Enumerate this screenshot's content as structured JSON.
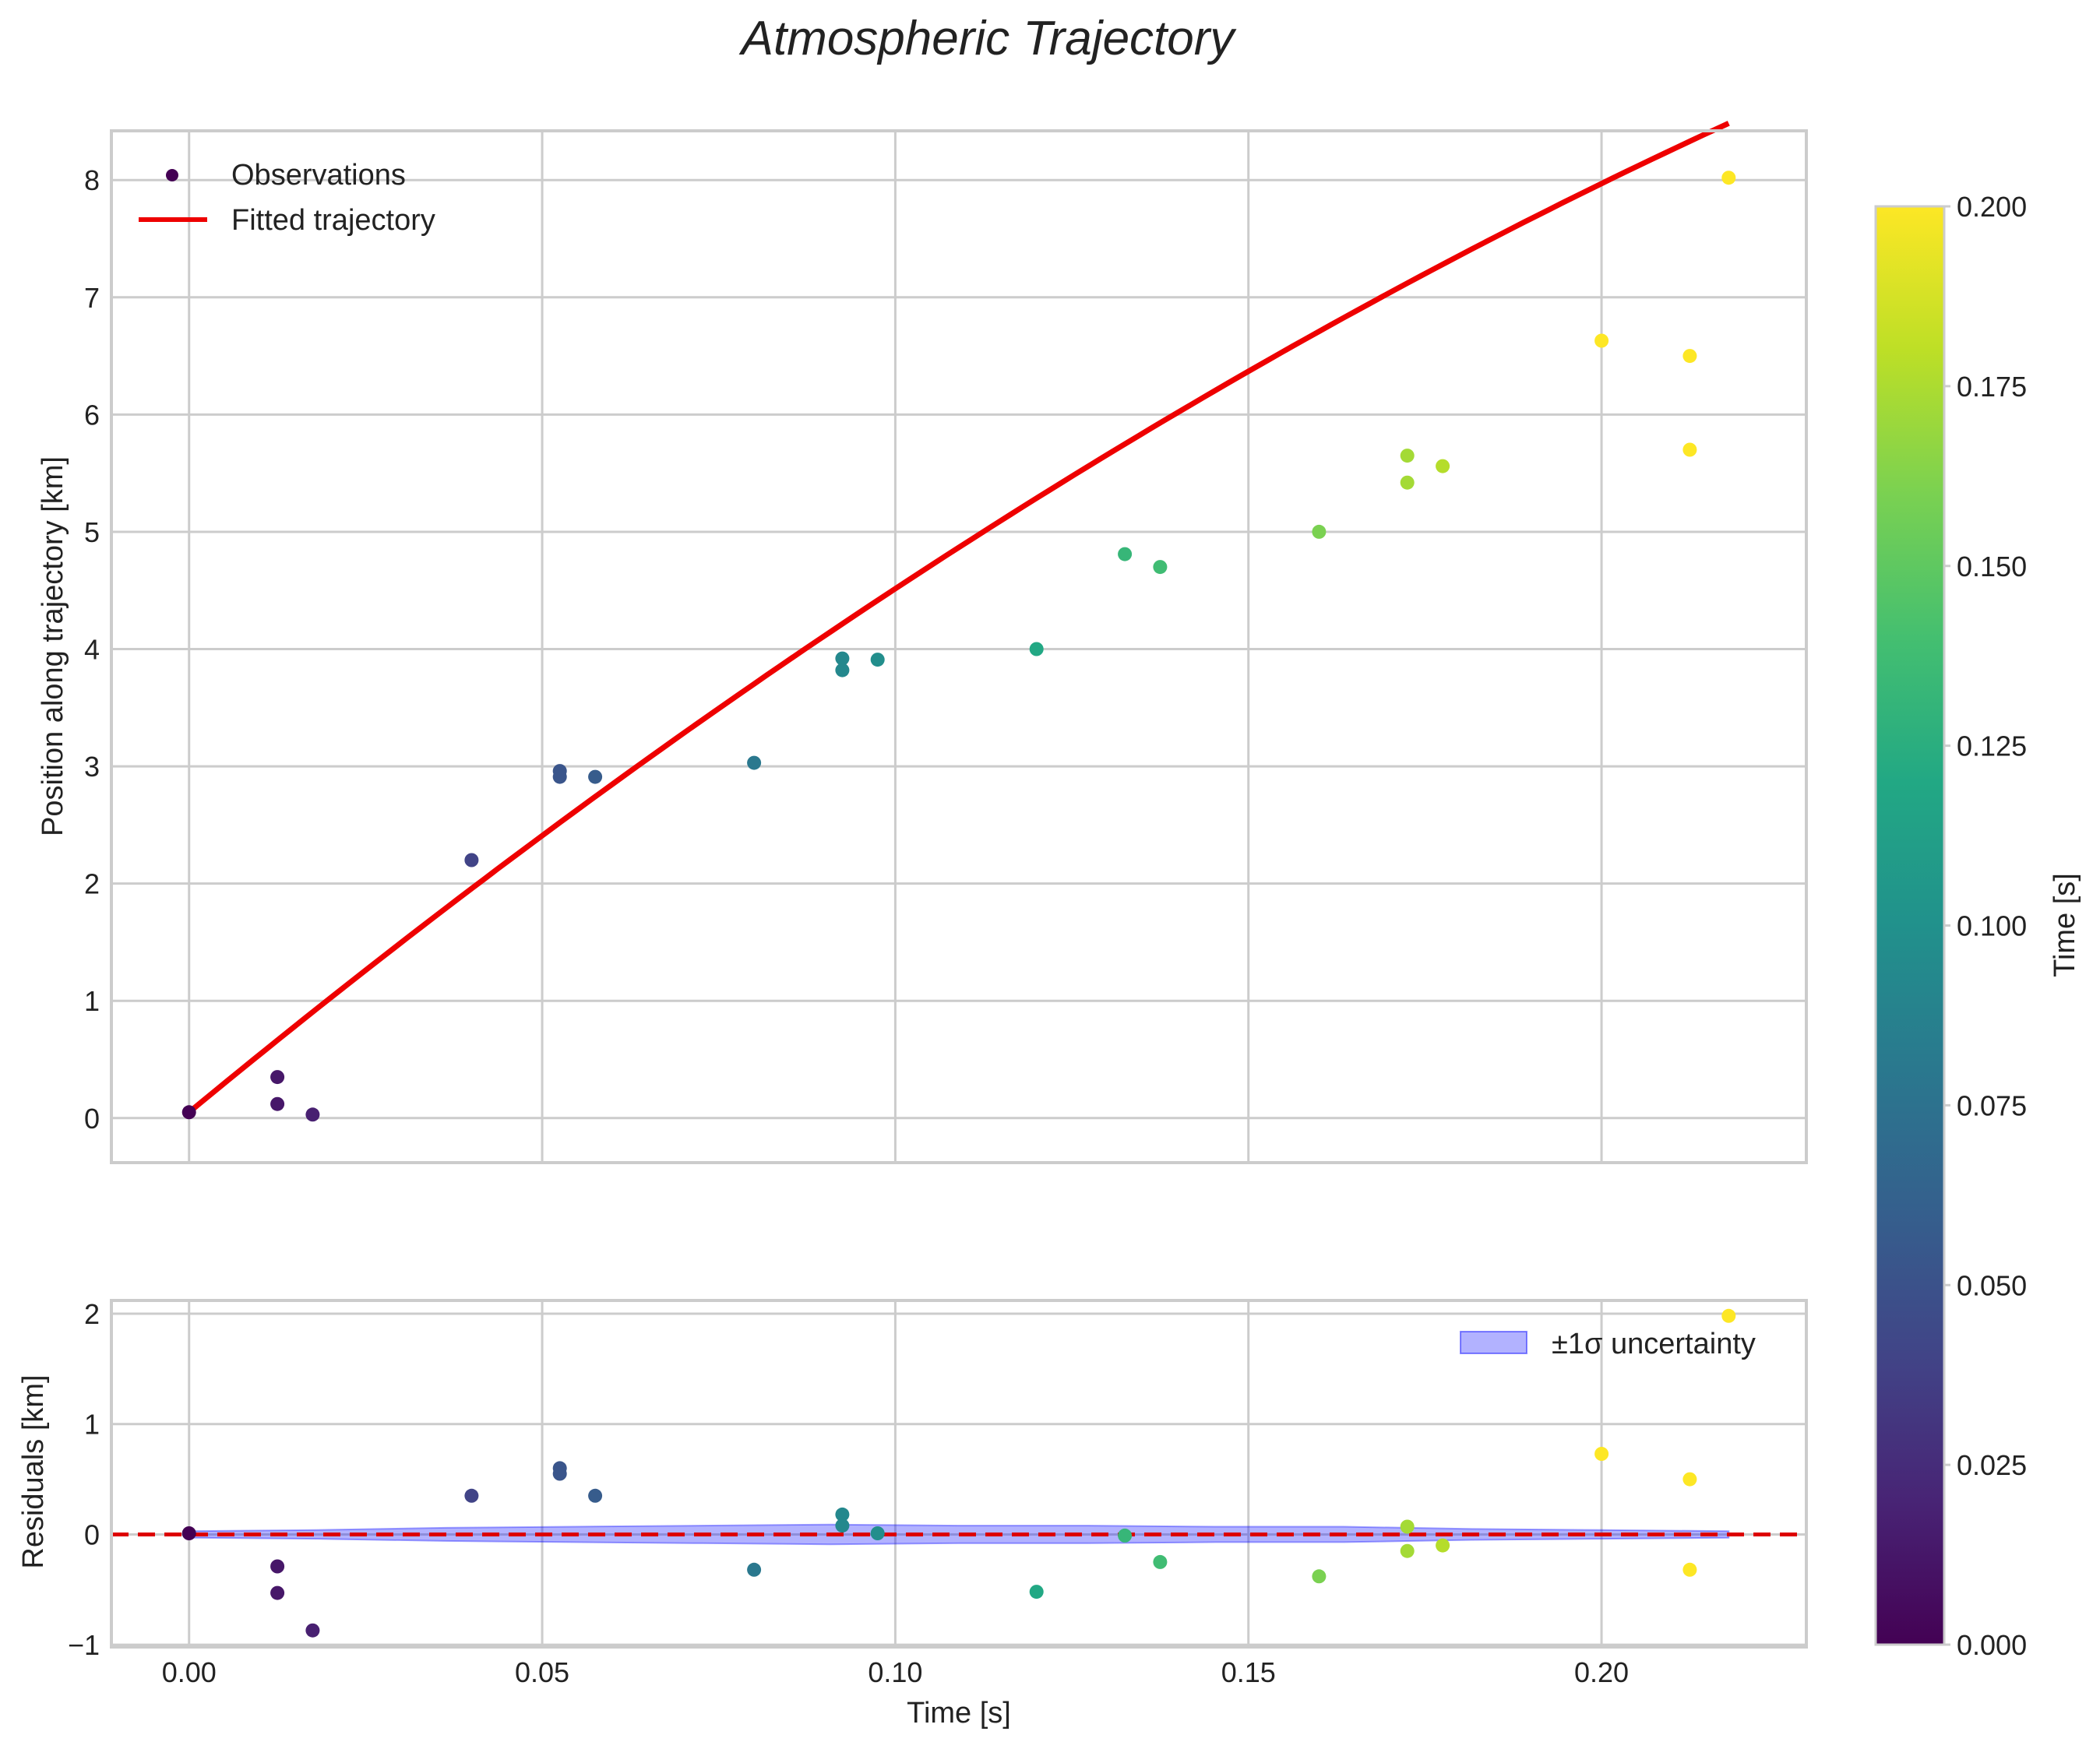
{
  "chart_data": {
    "type": "scatter",
    "title": "Atmospheric Trajectory",
    "x": [
      0.0,
      0.0125,
      0.0125,
      0.0175,
      0.04,
      0.0525,
      0.0525,
      0.0575,
      0.08,
      0.0925,
      0.0925,
      0.0975,
      0.12,
      0.1325,
      0.1375,
      0.16,
      0.1725,
      0.1725,
      0.1775,
      0.2,
      0.2125,
      0.2125,
      0.218
    ],
    "panels": [
      {
        "ylabel": "Position along trajectory [km]",
        "ylim": [
          -0.38,
          8.42
        ],
        "yticks": [
          0,
          1,
          2,
          3,
          4,
          5,
          6,
          7,
          8
        ],
        "ytick_labels": [
          "0",
          "1",
          "2",
          "3",
          "4",
          "5",
          "6",
          "7",
          "8"
        ],
        "series": [
          {
            "name": "Observations",
            "kind": "scatter",
            "values": [
              0.05,
              0.35,
              0.12,
              0.03,
              2.2,
              2.96,
              2.91,
              2.91,
              3.03,
              3.92,
              3.82,
              3.91,
              4.0,
              4.81,
              4.7,
              5.0,
              5.65,
              5.42,
              5.56,
              6.63,
              6.5,
              5.7,
              8.02
            ]
          },
          {
            "name": "Fitted trajectory",
            "kind": "line",
            "color": "#ee0000",
            "curve": {
              "v0_km_per_s": 49.7,
              "decel_km_per_s2": 101.0,
              "offset_km": 0.05,
              "x_start": 0.0,
              "x_end": 0.218
            }
          }
        ],
        "legend": "upper-left"
      },
      {
        "ylabel": "Residuals [km]",
        "ylim": [
          -1.02,
          2.12
        ],
        "yticks": [
          -1,
          0,
          1,
          2
        ],
        "ytick_labels": [
          "−1",
          "0",
          "1",
          "2"
        ],
        "xlabel": "Time [s]",
        "series": [
          {
            "name": "Residuals",
            "kind": "scatter",
            "values": [
              0.01,
              -0.29,
              -0.53,
              -0.87,
              0.35,
              0.6,
              0.55,
              0.35,
              -0.32,
              0.18,
              0.08,
              0.01,
              -0.52,
              -0.01,
              -0.25,
              -0.38,
              0.07,
              -0.15,
              -0.1,
              0.73,
              0.5,
              -0.32,
              1.98
            ]
          },
          {
            "name": "±1σ uncertainty",
            "kind": "band",
            "color": "#0000ff",
            "half_width": [
              0.03,
              0.04,
              0.06,
              0.07,
              0.08,
              0.09,
              0.08,
              0.08,
              0.07,
              0.07,
              0.05,
              0.04,
              0.03
            ]
          },
          {
            "name": "zero line",
            "kind": "hline",
            "value": 0,
            "color": "#dd0000"
          }
        ],
        "legend": "upper-right"
      }
    ],
    "xlim": [
      -0.011,
      0.229
    ],
    "xticks": [
      0.0,
      0.05,
      0.1,
      0.15,
      0.2
    ],
    "xtick_labels": [
      "0.00",
      "0.05",
      "0.10",
      "0.15",
      "0.20"
    ],
    "colorbar": {
      "label": "Time [s]",
      "colormap": "viridis",
      "range": [
        0.0,
        0.2
      ],
      "ticks": [
        0.0,
        0.025,
        0.05,
        0.075,
        0.1,
        0.125,
        0.15,
        0.175,
        0.2
      ],
      "tick_labels": [
        "0.000",
        "0.025",
        "0.050",
        "0.075",
        "0.100",
        "0.125",
        "0.150",
        "0.175",
        "0.200"
      ]
    },
    "grid": true
  }
}
